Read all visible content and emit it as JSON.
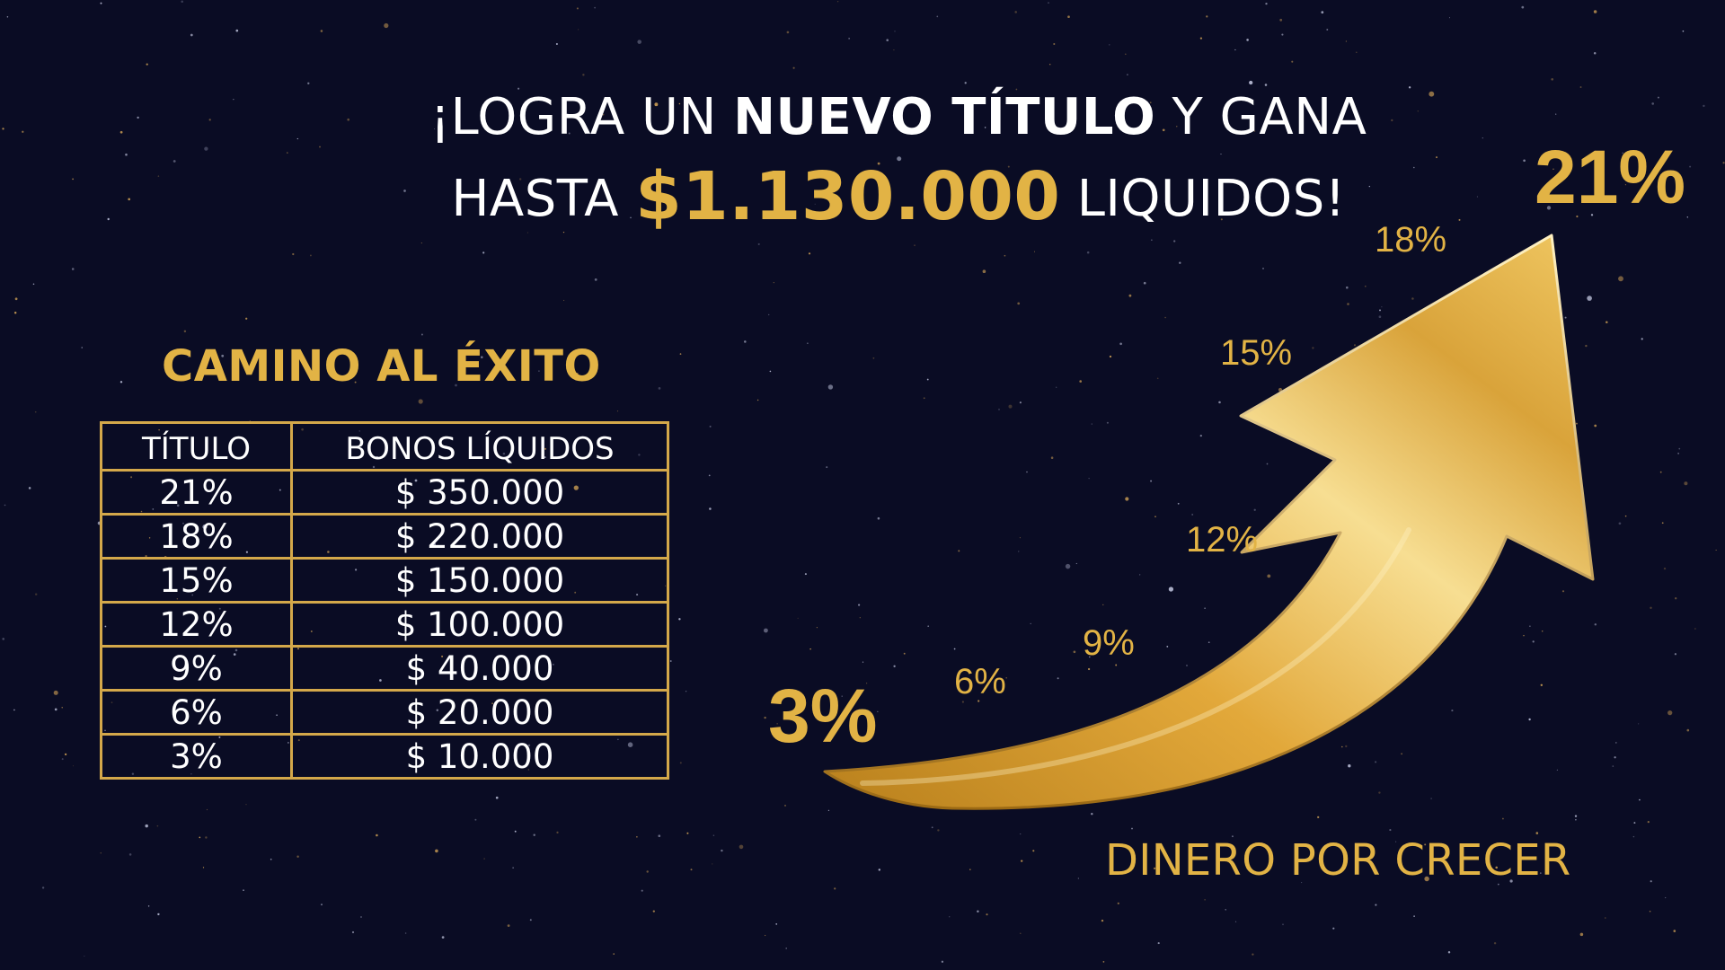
{
  "theme": {
    "background": "#0a0c24",
    "gold": "#e2b345",
    "gold_dark": "#b9801c",
    "gold_light": "#f7de92",
    "white": "#ffffff"
  },
  "headline": {
    "line1_pre": "¡LOGRA UN ",
    "line1_bold": "NUEVO TÍTULO",
    "line1_post": " Y GANA",
    "line2_pre": "HASTA ",
    "line2_amount": "$1.130.000",
    "line2_post": " LIQUIDOS!"
  },
  "table": {
    "title": "CAMINO AL ÉXITO",
    "headers": [
      "TÍTULO",
      "BONOS LÍQUIDOS"
    ],
    "rows": [
      {
        "title": "21%",
        "bonus": "$ 350.000"
      },
      {
        "title": "18%",
        "bonus": "$ 220.000"
      },
      {
        "title": "15%",
        "bonus": "$ 150.000"
      },
      {
        "title": "12%",
        "bonus": "$ 100.000"
      },
      {
        "title": "9%",
        "bonus": "$ 40.000"
      },
      {
        "title": "6%",
        "bonus": "$ 20.000"
      },
      {
        "title": "3%",
        "bonus": "$ 10.000"
      }
    ]
  },
  "growth": {
    "start_label": "3%",
    "end_label": "21%",
    "steps": [
      "6%",
      "9%",
      "12%",
      "15%",
      "18%"
    ],
    "caption": "DINERO POR CRECER",
    "arrow_icon": "rising-arrow-icon"
  }
}
